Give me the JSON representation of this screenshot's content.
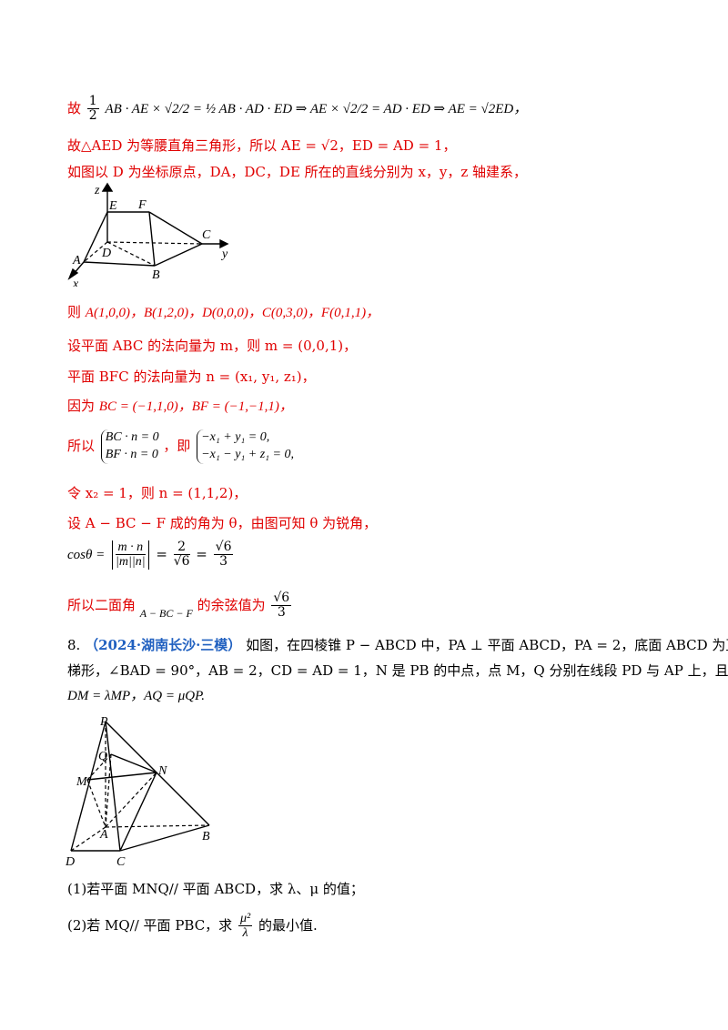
{
  "lines": {
    "l1_gu": "故",
    "l1_rest": "AB · AE × √2/2 = ½ AB · AD · ED ⇒ AE × √2/2 = AD · ED ⇒ AE = √2ED，",
    "l2": "故△AED 为等腰直角三角形，所以 AE = √2，ED = AD = 1，",
    "l3": "如图以 D 为坐标原点，DA，DC，DE 所在的直线分别为 x，y，z 轴建系，",
    "l4_pre": "则",
    "l4_math": "A(1,0,0)，B(1,2,0)，D(0,0,0)，C(0,3,0)，F(0,1,1)，",
    "l5": "设平面 ABC 的法向量为 m，则 m = (0,0,1)，",
    "l6": "平面 BFC 的法向量为 n = (x₁, y₁, z₁)，",
    "l7_pre": "因为",
    "l7_math": "BC = (−1,1,0)，BF = (−1,−1,1)，",
    "l8_pre": "所以",
    "l8_sys1a": "BC · n = 0",
    "l8_sys1b": "BF · n = 0",
    "l8_mid": "，即",
    "l8_sys2a": "−x₁ + y₁ = 0,",
    "l8_sys2b": "−x₁ − y₁ + z₁ = 0,",
    "l9": "令 x₂ = 1，则 n = (1,1,2)，",
    "l10": "设 A − BC − F 成的角为 θ，由图可知 θ 为锐角，",
    "l11_pre": "cosθ =",
    "l11_num": "m · n",
    "l11_den": "|m||n|",
    "l11_eq": "=",
    "l11_f1n": "2",
    "l11_f1d": "√6",
    "l11_f2n": "√6",
    "l11_f2d": "3",
    "l12_pre": "所以二面角",
    "l12_mid": "A − BC − F",
    "l12_post": "的余弦值为",
    "l12_fn": "√6",
    "l12_fd": "3"
  },
  "problem": {
    "number": "8.",
    "source": "（2024·湖南长沙·三模）",
    "text1": "如图，在四棱锥 P − ABCD 中，PA ⊥ 平面 ABCD，PA = 2，底面 ABCD 为直角",
    "text2": "梯形，∠BAD = 90°，AB = 2，CD = AD = 1，N 是 PB 的中点，点 M，Q 分别在线段 PD 与 AP 上，且",
    "text3": "DM = λMP，AQ = μQP.",
    "q1": "(1)若平面 MNQ// 平面 ABCD，求 λ、μ 的值；",
    "q2_pre": "(2)若 MQ// 平面 PBC，求",
    "q2_fn": "μ²",
    "q2_fd": "λ",
    "q2_post": "的最小值."
  },
  "fig1": {
    "E": "E",
    "F": "F",
    "C": "C",
    "D": "D",
    "A": "A",
    "B": "B",
    "x": "x",
    "y": "y",
    "z": "z"
  },
  "fig2": {
    "P": "P",
    "Q": "Q",
    "M": "M",
    "N": "N",
    "A": "A",
    "B": "B",
    "C": "C",
    "D": "D"
  }
}
